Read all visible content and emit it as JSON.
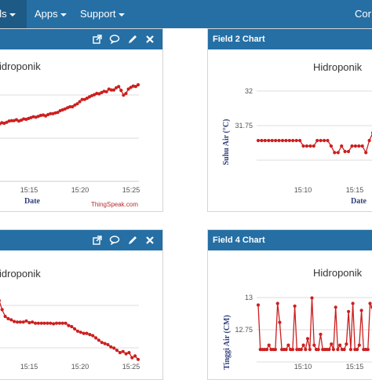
{
  "nav": {
    "items": [
      {
        "label": "els",
        "dropdown": true
      },
      {
        "label": "Apps",
        "dropdown": true
      },
      {
        "label": "Support",
        "dropdown": true
      },
      {
        "label": "Cor",
        "dropdown": false
      }
    ]
  },
  "panels": [
    {
      "id": "p1",
      "header_title": "",
      "icons": [
        "external-link-icon",
        "comment-icon",
        "pencil-icon",
        "close-icon"
      ]
    },
    {
      "id": "p2",
      "header_title": "Field 2 Chart",
      "icons": []
    },
    {
      "id": "p3",
      "header_title": "",
      "icons": [
        "external-link-icon",
        "comment-icon",
        "pencil-icon",
        "close-icon"
      ]
    },
    {
      "id": "p4",
      "header_title": "Field 4 Chart",
      "icons": []
    }
  ],
  "colors": {
    "navbar": "#256fa5",
    "series": "#cc1f1f",
    "grid": "#dddddd"
  },
  "chart_data": [
    {
      "id": "p1",
      "type": "line",
      "title": "idroponik",
      "xlabel": "Date",
      "ylabel": "",
      "credit": "ThingSpeak.com",
      "xticks": [
        "15:15",
        "15:20",
        "15:25"
      ],
      "series": [
        {
          "values": [
            0.1,
            0.06,
            0.09,
            0.12,
            0.11,
            0.13,
            0.16,
            0.17,
            0.17,
            0.19,
            0.16,
            0.18,
            0.21,
            0.2,
            0.22,
            0.24,
            0.26,
            0.25,
            0.27,
            0.29,
            0.3,
            0.28,
            0.31,
            0.33,
            0.33,
            0.35,
            0.36,
            0.4,
            0.42,
            0.44,
            0.47,
            0.49,
            0.49,
            0.53,
            0.56,
            0.61,
            0.66,
            0.66,
            0.69,
            0.72,
            0.75,
            0.77,
            0.8,
            0.79,
            0.82,
            0.85,
            0.84,
            0.9,
            0.88,
            0.88,
            0.93,
            0.96,
            0.87,
            0.76,
            0.8,
            0.9,
            0.94,
            0.97,
            0.96,
            1.0
          ]
        }
      ]
    },
    {
      "id": "p2",
      "type": "line",
      "title": "Hidroponik",
      "xlabel": "Date",
      "ylabel": "Suhu Air (°C)",
      "yticks": [
        "32",
        "31.75"
      ],
      "xticks": [
        "15:10",
        "15:15"
      ],
      "series": [
        {
          "values": [
            0.1,
            0.1,
            0.1,
            0.1,
            0.1,
            0.1,
            0.1,
            0.1,
            0.1,
            0.1,
            0.1,
            0.1,
            0.1,
            0.0,
            0.0,
            0.0,
            0.0,
            0.1,
            0.1,
            0.1,
            0.1,
            0.0,
            -0.12,
            -0.12,
            0.0,
            -0.1,
            -0.1,
            0.0,
            0.0,
            0.0,
            0.0,
            -0.12,
            0.1,
            0.24
          ]
        }
      ]
    },
    {
      "id": "p3",
      "type": "line",
      "title": "idroponik",
      "xlabel": "",
      "ylabel": "",
      "xticks": [
        "15:15",
        "15:20",
        "15:25"
      ],
      "series": [
        {
          "values": [
            0.92,
            0.96,
            0.8,
            0.68,
            0.64,
            0.62,
            0.59,
            0.58,
            0.58,
            0.58,
            0.6,
            0.57,
            0.58,
            0.56,
            0.56,
            0.56,
            0.56,
            0.56,
            0.56,
            0.55,
            0.56,
            0.56,
            0.56,
            0.56,
            0.52,
            0.5,
            0.46,
            0.42,
            0.4,
            0.38,
            0.38,
            0.36,
            0.34,
            0.3,
            0.26,
            0.22,
            0.2,
            0.18,
            0.14,
            0.12,
            0.08,
            0.04,
            0.06,
            0.02,
            0.04,
            -0.05,
            -0.02,
            -0.08
          ]
        }
      ]
    },
    {
      "id": "p4",
      "type": "line",
      "title": "Hidroponik",
      "xlabel": "",
      "ylabel": "Tinggi Air (CM)",
      "yticks": [
        "13",
        "12.75"
      ],
      "xticks": [
        "15:10",
        "15:15"
      ],
      "series": [
        {
          "values": [
            0.92,
            0.1,
            0.1,
            0.1,
            0.1,
            0.18,
            0.1,
            0.1,
            0.1,
            0.95,
            0.6,
            0.1,
            0.1,
            0.1,
            0.18,
            0.1,
            0.1,
            0.9,
            0.1,
            0.1,
            0.1,
            0.18,
            0.1,
            0.3,
            0.1,
            1.05,
            0.18,
            0.1,
            0.1,
            0.38,
            0.1,
            0.1,
            0.1,
            0.1,
            0.2,
            0.1,
            0.88,
            0.1,
            0.18,
            0.1,
            0.1,
            0.2,
            0.8,
            0.1,
            0.95,
            0.1,
            0.1,
            0.18,
            0.82,
            0.1,
            0.1,
            0.1,
            0.95,
            0.88,
            0.12
          ]
        }
      ]
    }
  ]
}
